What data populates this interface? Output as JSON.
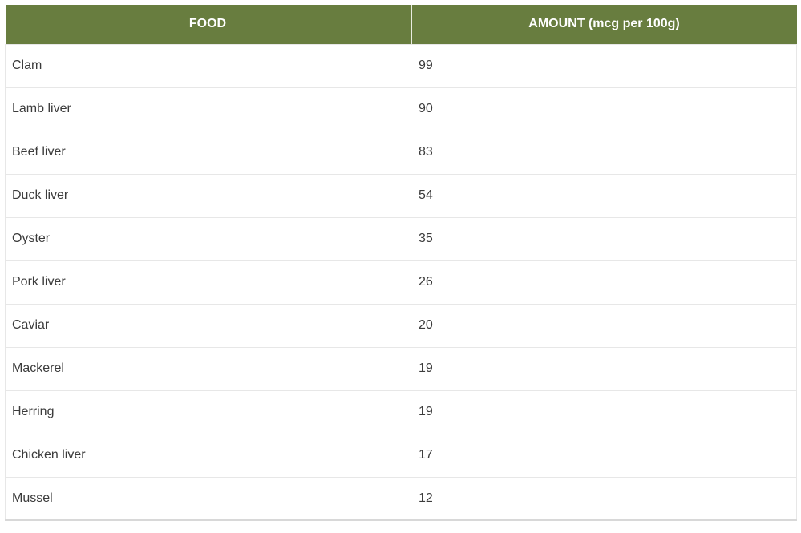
{
  "table": {
    "columns": [
      {
        "label": "FOOD"
      },
      {
        "label": "AMOUNT (mcg per 100g)"
      }
    ],
    "rows": [
      {
        "food": "Clam",
        "amount": "99"
      },
      {
        "food": "Lamb liver",
        "amount": "90"
      },
      {
        "food": "Beef liver",
        "amount": "83"
      },
      {
        "food": "Duck liver",
        "amount": "54"
      },
      {
        "food": "Oyster",
        "amount": "35"
      },
      {
        "food": "Pork liver",
        "amount": "26"
      },
      {
        "food": "Caviar",
        "amount": "20"
      },
      {
        "food": "Mackerel",
        "amount": "19"
      },
      {
        "food": "Herring",
        "amount": "19"
      },
      {
        "food": "Chicken liver",
        "amount": "17"
      },
      {
        "food": "Mussel",
        "amount": "12"
      }
    ]
  },
  "colors": {
    "header_bg": "#687d3f",
    "header_text": "#ffffff",
    "body_text": "#3b3b3b",
    "grid_line": "#e7e7e7",
    "header_divider": "#e9ece0",
    "bottom_border": "#d8d8d8",
    "page_bg": "#ffffff"
  },
  "chart_data": {
    "type": "table",
    "title": "",
    "columns": [
      "FOOD",
      "AMOUNT (mcg per 100g)"
    ],
    "categories": [
      "Clam",
      "Lamb liver",
      "Beef liver",
      "Duck liver",
      "Oyster",
      "Pork liver",
      "Caviar",
      "Mackerel",
      "Herring",
      "Chicken liver",
      "Mussel"
    ],
    "values": [
      99,
      90,
      83,
      54,
      35,
      26,
      20,
      19,
      19,
      17,
      12
    ],
    "value_unit": "mcg per 100g",
    "layout": {
      "header_position": "top",
      "grid": true,
      "header_color": "#687d3f"
    }
  }
}
